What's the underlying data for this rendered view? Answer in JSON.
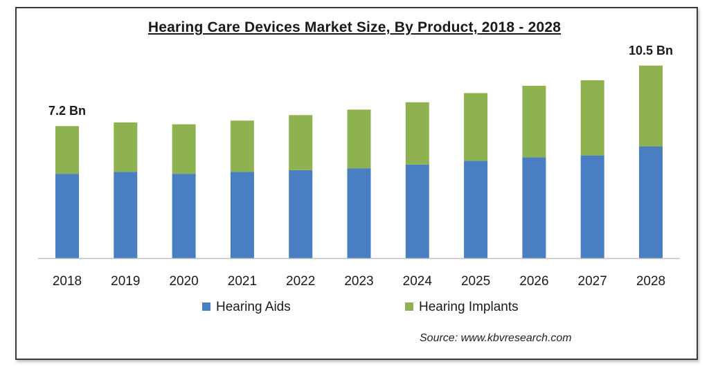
{
  "chart_data": {
    "type": "bar",
    "stacked": true,
    "title": "Hearing Care Devices Market Size, By Product, 2018 - 2028",
    "categories": [
      "2018",
      "2019",
      "2020",
      "2021",
      "2022",
      "2023",
      "2024",
      "2025",
      "2026",
      "2027",
      "2028"
    ],
    "series": [
      {
        "name": "Hearing Aids",
        "color": "#4a7ec3",
        "values": [
          4.6,
          4.7,
          4.6,
          4.7,
          4.8,
          4.9,
          5.1,
          5.3,
          5.5,
          5.6,
          6.1
        ]
      },
      {
        "name": "Hearing Implants",
        "color": "#8db24f",
        "values": [
          2.6,
          2.7,
          2.7,
          2.8,
          3.0,
          3.2,
          3.4,
          3.7,
          3.9,
          4.1,
          4.4
        ]
      }
    ],
    "data_labels": [
      {
        "category": "2018",
        "text": "7.2 Bn"
      },
      {
        "category": "2028",
        "text": "10.5 Bn"
      }
    ],
    "ylim": [
      0,
      12
    ],
    "grid": false,
    "legend_position": "bottom",
    "source": "Source:  www.kbvresearch.com"
  }
}
